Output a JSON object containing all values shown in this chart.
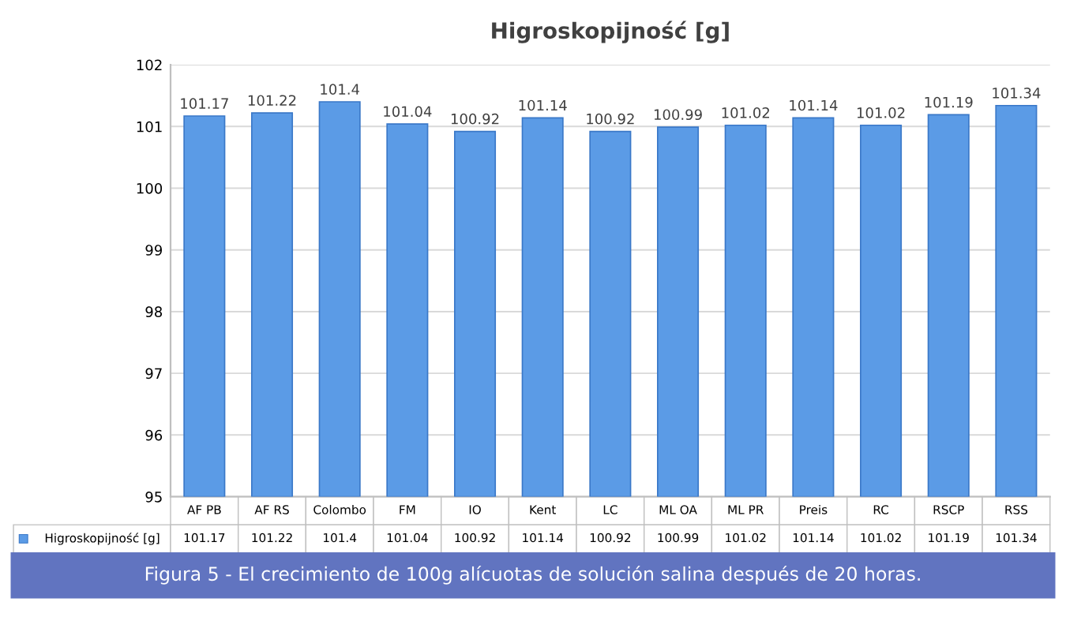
{
  "chart_data": {
    "type": "bar",
    "title": "Higroskopijność [g]",
    "categories": [
      "AF PB",
      "AF RS",
      "Colombo",
      "FM",
      "IO",
      "Kent",
      "LC",
      "ML OA",
      "ML PR",
      "Preis",
      "RC",
      "RSCP",
      "RSS"
    ],
    "series": [
      {
        "name": "Higroskopijność [g]",
        "color": "#5b9be6",
        "values": [
          101.17,
          101.22,
          101.4,
          101.04,
          100.92,
          101.14,
          100.92,
          100.99,
          101.02,
          101.14,
          101.02,
          101.19,
          101.34
        ]
      }
    ],
    "value_labels": [
      "101.17",
      "101.22",
      "101.4",
      "101.04",
      "100.92",
      "101.14",
      "100.92",
      "100.99",
      "101.02",
      "101.14",
      "101.02",
      "101.19",
      "101.34"
    ],
    "ylim": [
      95,
      102
    ],
    "yticks": [
      95,
      96,
      97,
      98,
      99,
      100,
      101,
      102
    ],
    "grid": "y",
    "data_labels": true,
    "annotations": [
      "Figura 5 - El crecimiento de 100g alícuotas de solución salina después de 20 horas."
    ]
  }
}
